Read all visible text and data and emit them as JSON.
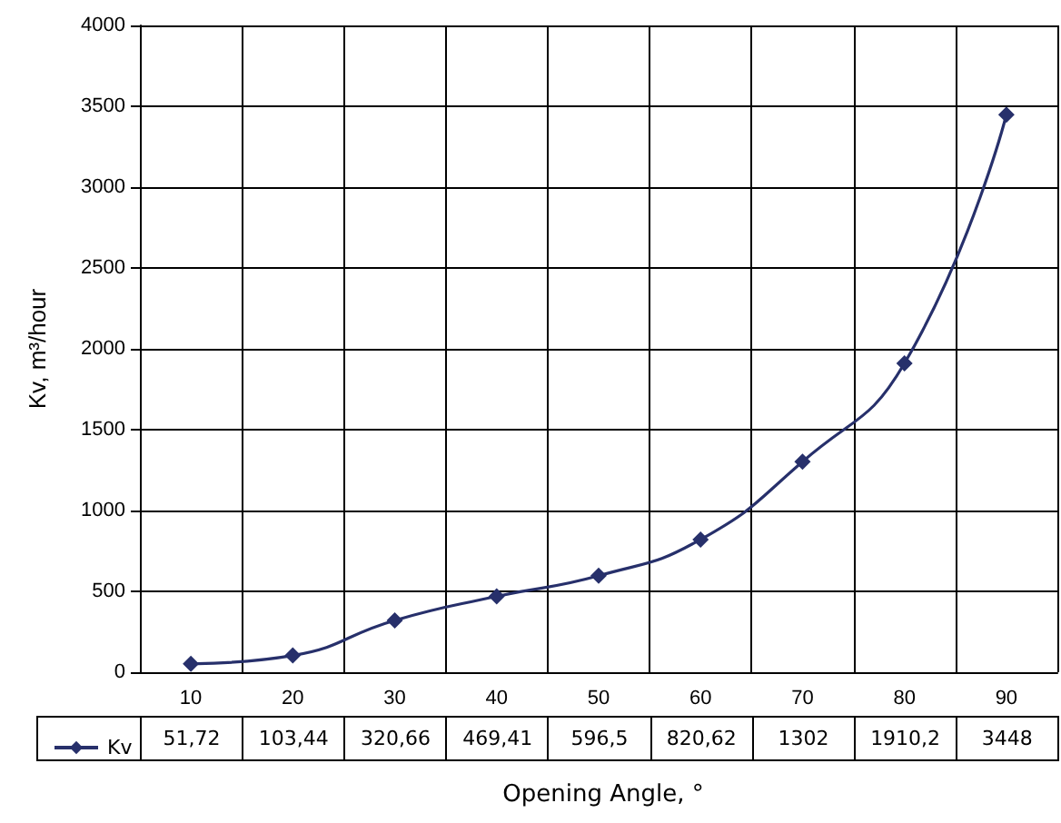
{
  "chart_data": {
    "type": "line",
    "xlabel": "Opening Angle, °",
    "ylabel": "Kv, m³/hour",
    "categories": [
      "10",
      "20",
      "30",
      "40",
      "50",
      "60",
      "70",
      "80",
      "90"
    ],
    "series": [
      {
        "name": "Kv",
        "color": "#27306b",
        "values": [
          51.72,
          103.44,
          320.66,
          469.41,
          596.5,
          820.62,
          1302,
          1910.2,
          3448
        ],
        "value_labels": [
          "51,72",
          "103,44",
          "320,66",
          "469,41",
          "596,5",
          "820,62",
          "1302",
          "1910,2",
          "3448"
        ]
      }
    ],
    "ylim": [
      0,
      4000
    ],
    "yticks": [
      0,
      500,
      1000,
      1500,
      2000,
      2500,
      3000,
      3500,
      4000
    ],
    "grid": true,
    "marker": "diamond",
    "line_style": "solid",
    "legend": "bottom left"
  }
}
